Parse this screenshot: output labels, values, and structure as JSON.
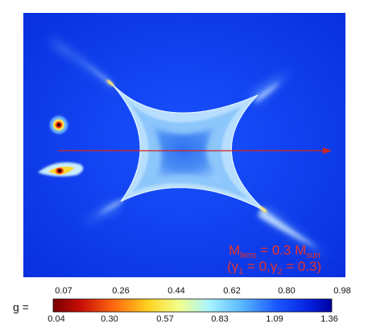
{
  "annotation": {
    "line1_prefix": "M",
    "line1_sub": "lens",
    "line1_mid": " = 0.3 M",
    "line1_sub2": "sun",
    "line2_a": "(γ",
    "line2_sub1": "1",
    "line2_b": " = 0,γ",
    "line2_sub2": "2",
    "line2_c": " = 0.3)"
  },
  "colorbar": {
    "label": "g  =",
    "top_ticks": [
      "0.07",
      "0.26",
      "0.44",
      "0.62",
      "0.80",
      "0.98"
    ],
    "bottom_ticks": [
      "0.04",
      "0.30",
      "0.57",
      "0.83",
      "1.09",
      "1.36"
    ],
    "colors": [
      "#7a0000",
      "#d81a10",
      "#ffd21e",
      "#f7ff7a",
      "#9ff0ff",
      "#2f8cff",
      "#0a2aff",
      "#0000a0"
    ]
  },
  "colors": {
    "background": "#0a35e6",
    "caustic_fill": "#aad8ff",
    "caustic_core": "#3a7cf0",
    "track": "#d2261e",
    "annotation": "#e8322a"
  }
}
